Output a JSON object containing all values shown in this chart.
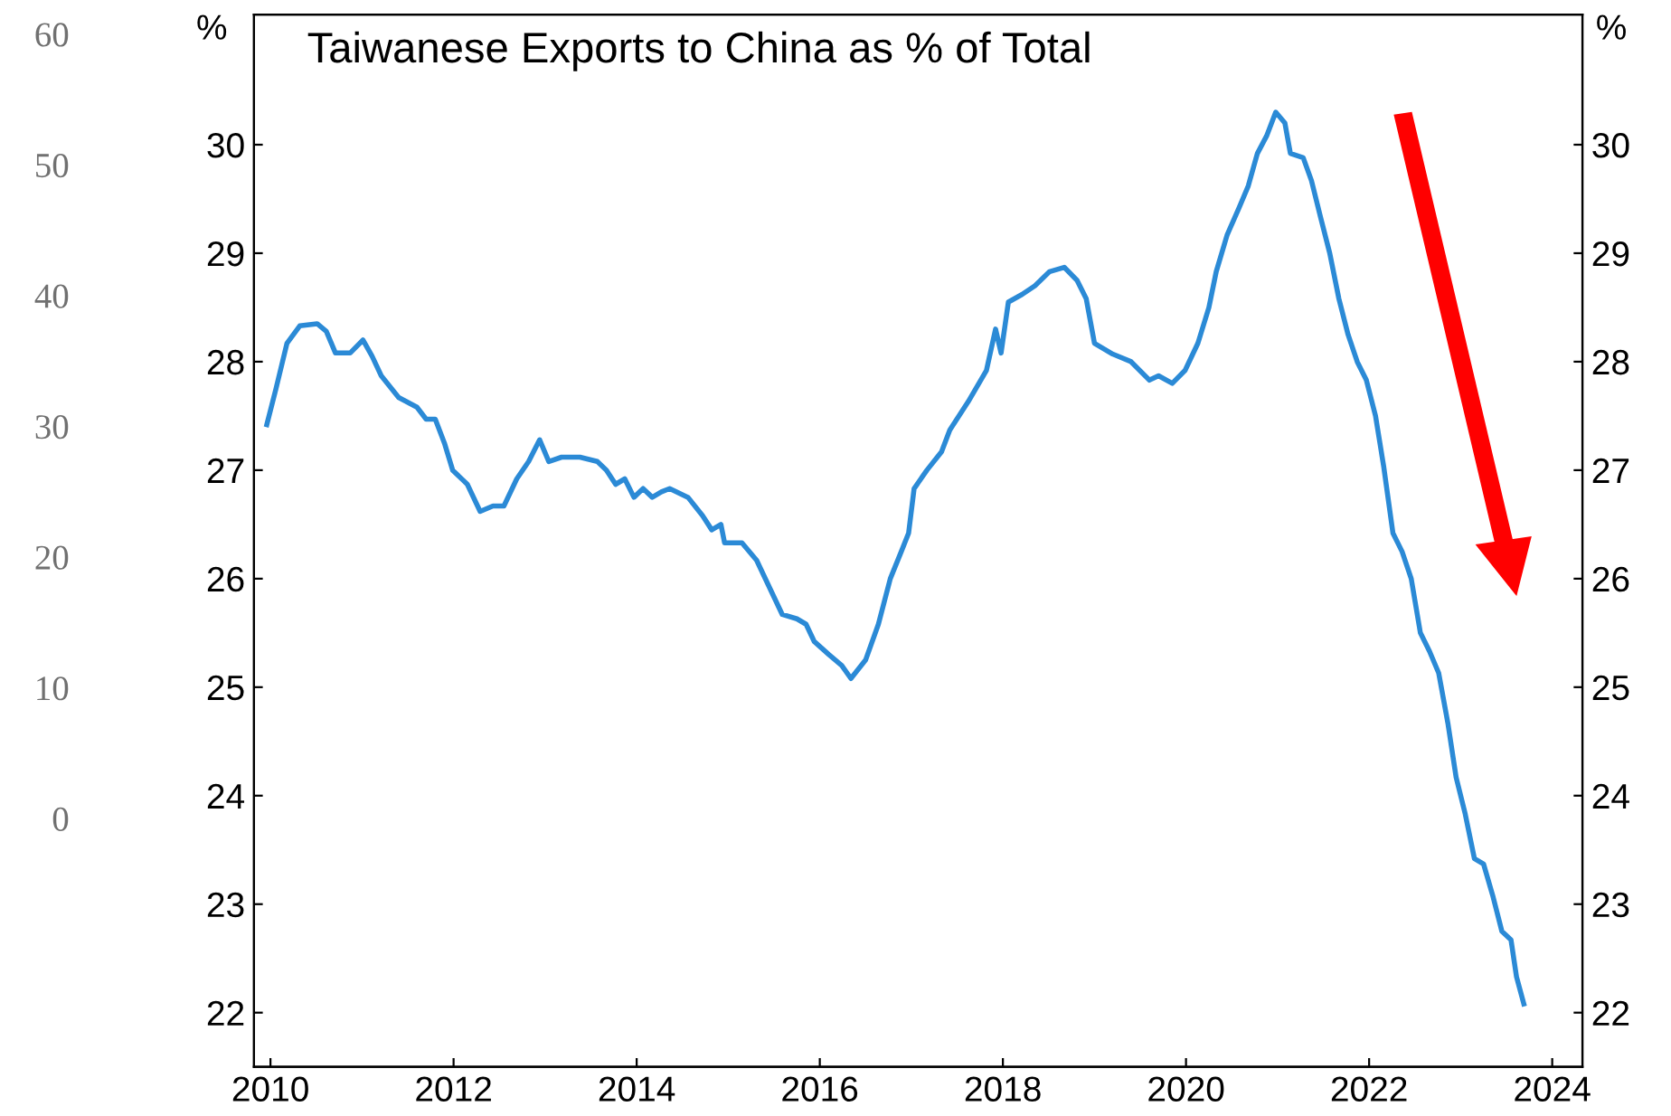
{
  "chart_data": {
    "type": "line",
    "title": "Taiwanese Exports to China as % of Total",
    "ylabel": "%",
    "y2label": "%",
    "series": [
      {
        "color": "#2b8ad6",
        "x": [
          2009.96,
          2010.06,
          2010.18,
          2010.32,
          2010.51,
          2010.61,
          2010.71,
          2010.87,
          2011.01,
          2011.11,
          2011.21,
          2011.4,
          2011.6,
          2011.7,
          2011.8,
          2011.9,
          2011.99,
          2012.15,
          2012.29,
          2012.43,
          2012.55,
          2012.69,
          2012.82,
          2012.94,
          2013.04,
          2013.18,
          2013.38,
          2013.57,
          2013.67,
          2013.77,
          2013.87,
          2013.97,
          2014.07,
          2014.17,
          2014.27,
          2014.36,
          2014.56,
          2014.72,
          2014.82,
          2014.92,
          2014.96,
          2015.15,
          2015.31,
          2015.45,
          2015.59,
          2015.75,
          2015.85,
          2015.94,
          2016.1,
          2016.24,
          2016.34,
          2016.5,
          2016.64,
          2016.77,
          2016.89,
          2016.97,
          2017.03,
          2017.17,
          2017.33,
          2017.42,
          2017.62,
          2017.82,
          2017.92,
          2017.98,
          2018.06,
          2018.21,
          2018.35,
          2018.51,
          2018.67,
          2018.81,
          2018.91,
          2019.0,
          2019.2,
          2019.4,
          2019.6,
          2019.7,
          2019.85,
          2019.99,
          2020.13,
          2020.25,
          2020.33,
          2020.45,
          2020.58,
          2020.68,
          2020.78,
          2020.88,
          2020.98,
          2021.08,
          2021.14,
          2021.28,
          2021.37,
          2021.47,
          2021.57,
          2021.67,
          2021.77,
          2021.87,
          2021.97,
          2022.07,
          2022.16,
          2022.26,
          2022.36,
          2022.46,
          2022.56,
          2022.66,
          2022.76,
          2022.86,
          2022.95,
          2023.05,
          2023.15,
          2023.25,
          2023.35,
          2023.45,
          2023.55,
          2023.61,
          2023.69
        ],
        "values": [
          27.42,
          27.75,
          28.17,
          28.33,
          28.35,
          28.28,
          28.08,
          28.08,
          28.2,
          28.05,
          27.87,
          27.67,
          27.58,
          27.47,
          27.47,
          27.25,
          27.0,
          26.87,
          26.62,
          26.67,
          26.67,
          26.92,
          27.08,
          27.28,
          27.08,
          27.12,
          27.12,
          27.08,
          27.0,
          26.87,
          26.92,
          26.75,
          26.83,
          26.75,
          26.8,
          26.83,
          26.75,
          26.58,
          26.45,
          26.5,
          26.33,
          26.33,
          26.17,
          25.92,
          25.67,
          25.63,
          25.58,
          25.42,
          25.3,
          25.2,
          25.08,
          25.25,
          25.58,
          26.0,
          26.25,
          26.42,
          26.83,
          27.0,
          27.17,
          27.37,
          27.63,
          27.92,
          28.3,
          28.08,
          28.55,
          28.62,
          28.7,
          28.83,
          28.87,
          28.75,
          28.58,
          28.17,
          28.07,
          28.0,
          27.83,
          27.87,
          27.8,
          27.92,
          28.17,
          28.5,
          28.83,
          29.17,
          29.42,
          29.62,
          29.92,
          30.08,
          30.3,
          30.2,
          29.92,
          29.88,
          29.67,
          29.33,
          29.0,
          28.58,
          28.25,
          28.0,
          27.83,
          27.5,
          27.03,
          26.42,
          26.25,
          26.0,
          25.5,
          25.33,
          25.13,
          24.67,
          24.17,
          23.83,
          23.42,
          23.37,
          23.08,
          22.75,
          22.67,
          22.33,
          22.08
        ]
      }
    ],
    "xlim": [
      2009.82,
      2024.33
    ],
    "xticks": [
      2010,
      2012,
      2014,
      2016,
      2018,
      2020,
      2022,
      2024
    ],
    "ylim": [
      21.5,
      31.2
    ],
    "yticks": [
      22,
      23,
      24,
      25,
      26,
      27,
      28,
      29,
      30
    ],
    "y2lim": [
      21.5,
      31.2
    ],
    "y2ticks": [
      22,
      23,
      24,
      25,
      26,
      27,
      28,
      29,
      30
    ],
    "y3lim": [
      -19,
      61.5
    ],
    "y3ticks": [
      0,
      10,
      20,
      30,
      40,
      50,
      60
    ],
    "grid": false,
    "legend": false,
    "marker": "none",
    "line_style": "solid"
  }
}
